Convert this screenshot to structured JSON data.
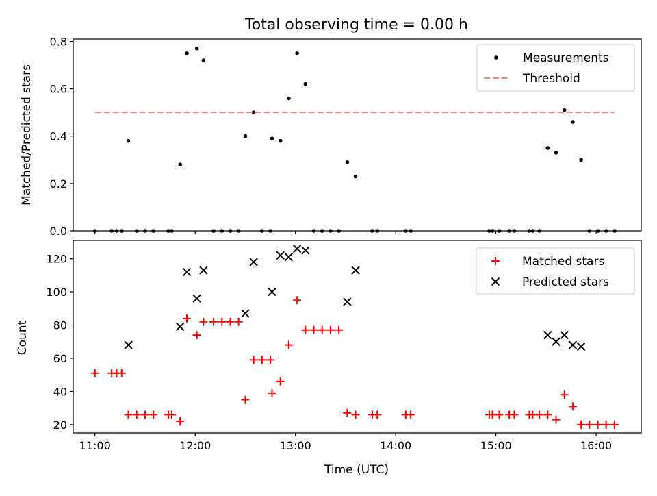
{
  "chart_data": [
    {
      "type": "scatter",
      "title": "Total observing time = 0.00 h",
      "xlabel": "",
      "ylabel": "Matched/Predicted stars",
      "xlim": [
        "10:47",
        "16:27"
      ],
      "ylim": [
        0,
        0.81
      ],
      "yticks": [
        "0.0",
        "0.2",
        "0.4",
        "0.6",
        "0.8"
      ],
      "yticks_values": [
        0,
        0.2,
        0.4,
        0.6,
        0.8
      ],
      "xticks_values": [
        "11:00",
        "12:00",
        "13:00",
        "14:00",
        "15:00",
        "16:00"
      ],
      "legend": {
        "position": "top-right",
        "entries": [
          "Measurements",
          "Threshold"
        ]
      },
      "series": [
        {
          "name": "Measurements",
          "color": "#000000",
          "marker": "dot",
          "points": [
            [
              "11:00",
              0.0
            ],
            [
              "11:10",
              0.0
            ],
            [
              "11:13",
              0.0
            ],
            [
              "11:16",
              0.0
            ],
            [
              "11:20",
              0.38
            ],
            [
              "11:25",
              0.0
            ],
            [
              "11:30",
              0.0
            ],
            [
              "11:35",
              0.0
            ],
            [
              "11:44",
              0.0
            ],
            [
              "11:46",
              0.0
            ],
            [
              "11:51",
              0.28
            ],
            [
              "11:55",
              0.75
            ],
            [
              "12:01",
              0.77
            ],
            [
              "12:05",
              0.72
            ],
            [
              "12:11",
              0.0
            ],
            [
              "12:16",
              0.0
            ],
            [
              "12:21",
              0.0
            ],
            [
              "12:26",
              0.0
            ],
            [
              "12:30",
              0.4
            ],
            [
              "12:35",
              0.5
            ],
            [
              "12:40",
              0.0
            ],
            [
              "12:45",
              0.0
            ],
            [
              "12:46",
              0.39
            ],
            [
              "12:51",
              0.38
            ],
            [
              "12:56",
              0.56
            ],
            [
              "13:01",
              0.75
            ],
            [
              "13:06",
              0.62
            ],
            [
              "13:11",
              0.0
            ],
            [
              "13:16",
              0.0
            ],
            [
              "13:21",
              0.0
            ],
            [
              "13:26",
              0.0
            ],
            [
              "13:31",
              0.29
            ],
            [
              "13:36",
              0.23
            ],
            [
              "13:46",
              0.0
            ],
            [
              "13:49",
              0.0
            ],
            [
              "14:06",
              0.0
            ],
            [
              "14:09",
              0.0
            ],
            [
              "14:56",
              0.0
            ],
            [
              "14:58",
              0.0
            ],
            [
              "15:02",
              0.0
            ],
            [
              "15:08",
              0.0
            ],
            [
              "15:11",
              0.0
            ],
            [
              "15:20",
              0.0
            ],
            [
              "15:22",
              0.0
            ],
            [
              "15:26",
              0.0
            ],
            [
              "15:31",
              0.35
            ],
            [
              "15:36",
              0.33
            ],
            [
              "15:41",
              0.51
            ],
            [
              "15:46",
              0.46
            ],
            [
              "15:51",
              0.3
            ],
            [
              "15:56",
              0.0
            ],
            [
              "16:01",
              0.0
            ],
            [
              "16:06",
              0.0
            ],
            [
              "16:11",
              0.0
            ]
          ]
        },
        {
          "name": "Threshold",
          "color": "#ff7f7f",
          "style": "dashed",
          "points": [
            [
              "11:00",
              0.5
            ],
            [
              "16:11",
              0.5
            ]
          ]
        }
      ]
    },
    {
      "type": "scatter",
      "title": "",
      "xlabel": "Time (UTC)",
      "ylabel": "Count",
      "xlim": [
        "10:47",
        "16:27"
      ],
      "ylim": [
        15,
        131
      ],
      "yticks": [
        "20",
        "40",
        "60",
        "80",
        "100",
        "120"
      ],
      "yticks_values": [
        20,
        40,
        60,
        80,
        100,
        120
      ],
      "xticks": [
        "11:00",
        "12:00",
        "13:00",
        "14:00",
        "15:00",
        "16:00"
      ],
      "legend": {
        "position": "top-right",
        "entries": [
          "Matched stars",
          "Predicted stars"
        ]
      },
      "series": [
        {
          "name": "Matched stars",
          "color": "#ff0000",
          "marker": "plus",
          "points": [
            [
              "11:00",
              51
            ],
            [
              "11:10",
              51
            ],
            [
              "11:13",
              51
            ],
            [
              "11:16",
              51
            ],
            [
              "11:20",
              26
            ],
            [
              "11:25",
              26
            ],
            [
              "11:30",
              26
            ],
            [
              "11:35",
              26
            ],
            [
              "11:44",
              26
            ],
            [
              "11:46",
              26
            ],
            [
              "11:51",
              22
            ],
            [
              "11:55",
              84
            ],
            [
              "12:01",
              74
            ],
            [
              "12:05",
              82
            ],
            [
              "12:11",
              82
            ],
            [
              "12:16",
              82
            ],
            [
              "12:21",
              82
            ],
            [
              "12:26",
              82
            ],
            [
              "12:30",
              35
            ],
            [
              "12:35",
              59
            ],
            [
              "12:40",
              59
            ],
            [
              "12:45",
              59
            ],
            [
              "12:46",
              39
            ],
            [
              "12:51",
              46
            ],
            [
              "12:56",
              68
            ],
            [
              "13:01",
              95
            ],
            [
              "13:06",
              77
            ],
            [
              "13:11",
              77
            ],
            [
              "13:16",
              77
            ],
            [
              "13:21",
              77
            ],
            [
              "13:26",
              77
            ],
            [
              "13:31",
              27
            ],
            [
              "13:36",
              26
            ],
            [
              "13:46",
              26
            ],
            [
              "13:49",
              26
            ],
            [
              "14:06",
              26
            ],
            [
              "14:09",
              26
            ],
            [
              "14:56",
              26
            ],
            [
              "14:58",
              26
            ],
            [
              "15:02",
              26
            ],
            [
              "15:08",
              26
            ],
            [
              "15:11",
              26
            ],
            [
              "15:20",
              26
            ],
            [
              "15:22",
              26
            ],
            [
              "15:26",
              26
            ],
            [
              "15:31",
              26
            ],
            [
              "15:36",
              23
            ],
            [
              "15:41",
              38
            ],
            [
              "15:46",
              31
            ],
            [
              "15:51",
              20
            ],
            [
              "15:56",
              20
            ],
            [
              "16:01",
              20
            ],
            [
              "16:06",
              20
            ],
            [
              "16:11",
              20
            ]
          ]
        },
        {
          "name": "Predicted stars",
          "color": "#000000",
          "marker": "x",
          "points": [
            [
              "11:20",
              68
            ],
            [
              "11:51",
              79
            ],
            [
              "11:55",
              112
            ],
            [
              "12:01",
              96
            ],
            [
              "12:05",
              113
            ],
            [
              "12:30",
              87
            ],
            [
              "12:35",
              118
            ],
            [
              "12:46",
              100
            ],
            [
              "12:51",
              122
            ],
            [
              "12:56",
              121
            ],
            [
              "13:01",
              126
            ],
            [
              "13:06",
              125
            ],
            [
              "13:31",
              94
            ],
            [
              "13:36",
              113
            ],
            [
              "15:31",
              74
            ],
            [
              "15:36",
              70
            ],
            [
              "15:41",
              74
            ],
            [
              "15:46",
              68
            ],
            [
              "15:51",
              67
            ]
          ]
        }
      ]
    }
  ]
}
